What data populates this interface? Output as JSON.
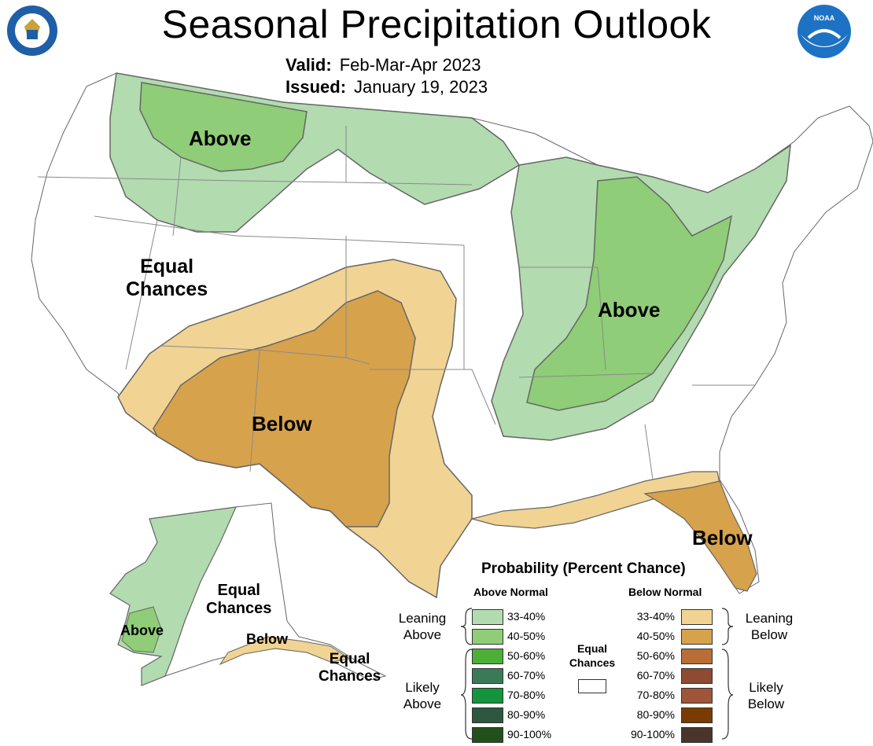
{
  "header": {
    "title": "Seasonal Precipitation Outlook",
    "valid_label": "Valid:",
    "valid_value": "Feb-Mar-Apr 2023",
    "issued_label": "Issued:",
    "issued_value": "January 19, 2023"
  },
  "logos": {
    "left": "department-of-commerce-seal",
    "right": "noara-logo",
    "noaa_text": "NOAA"
  },
  "map_labels": {
    "north_above": "Above",
    "west_equal_1": "Equal",
    "west_equal_2": "Chances",
    "sw_below": "Below",
    "east_above": "Above",
    "florida_below": "Below",
    "alaska_equal_1": "Equal",
    "alaska_equal_2": "Chances",
    "alaska_above": "Above",
    "alaska_below": "Below",
    "alaska_se_equal_1": "Equal",
    "alaska_se_equal_2": "Chances"
  },
  "legend": {
    "title": "Probability (Percent Chance)",
    "above_header": "Above Normal",
    "below_header": "Below Normal",
    "equal_label_1": "Equal",
    "equal_label_2": "Chances",
    "leaning_above_1": "Leaning",
    "leaning_above_2": "Above",
    "likely_above_1": "Likely",
    "likely_above_2": "Above",
    "leaning_below_1": "Leaning",
    "leaning_below_2": "Below",
    "likely_below_1": "Likely",
    "likely_below_2": "Below",
    "above": [
      {
        "range": "33-40%",
        "color": "#b2dbb0"
      },
      {
        "range": "40-50%",
        "color": "#8fcd78"
      },
      {
        "range": "50-60%",
        "color": "#4caf38"
      },
      {
        "range": "60-70%",
        "color": "#3b7a57"
      },
      {
        "range": "70-80%",
        "color": "#14943c"
      },
      {
        "range": "80-90%",
        "color": "#2e5740"
      },
      {
        "range": "90-100%",
        "color": "#22501a"
      }
    ],
    "below": [
      {
        "range": "33-40%",
        "color": "#f1d393"
      },
      {
        "range": "40-50%",
        "color": "#d7a24c"
      },
      {
        "range": "50-60%",
        "color": "#b86e34"
      },
      {
        "range": "60-70%",
        "color": "#8e4a32"
      },
      {
        "range": "70-80%",
        "color": "#a0553a"
      },
      {
        "range": "80-90%",
        "color": "#7a3b00"
      },
      {
        "range": "90-100%",
        "color": "#4a352c"
      }
    ]
  },
  "colors": {
    "leaning_above": "#b2dbb0",
    "above_40": "#8fcd78",
    "leaning_below": "#f1d393",
    "below_40": "#d7a24c",
    "state_lines": "#888888",
    "outline": "#333333"
  }
}
